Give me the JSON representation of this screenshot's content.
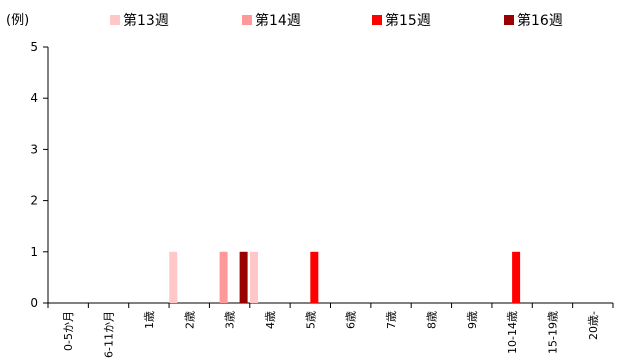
{
  "chart_data": {
    "type": "bar",
    "ylabel": "(例)",
    "ylim": [
      0,
      5
    ],
    "yticks": [
      0,
      1,
      2,
      3,
      4,
      5
    ],
    "categories": [
      "0-5か月",
      "6-11か月",
      "1歳",
      "2歳",
      "3歳",
      "4歳",
      "5歳",
      "6歳",
      "7歳",
      "8歳",
      "9歳",
      "10-14歳",
      "15-19歳",
      "20歳-"
    ],
    "series": [
      {
        "name": "第13週",
        "color": "#ffc7c7",
        "values": [
          0,
          0,
          0,
          1,
          0,
          1,
          0,
          0,
          0,
          0,
          0,
          0,
          0,
          0
        ]
      },
      {
        "name": "第14週",
        "color": "#ff9999",
        "values": [
          0,
          0,
          0,
          0,
          1,
          0,
          0,
          0,
          0,
          0,
          0,
          0,
          0,
          0
        ]
      },
      {
        "name": "第15週",
        "color": "#ff0000",
        "values": [
          0,
          0,
          0,
          0,
          0,
          0,
          1,
          0,
          0,
          0,
          0,
          1,
          0,
          0
        ]
      },
      {
        "name": "第16週",
        "color": "#990000",
        "values": [
          0,
          0,
          0,
          0,
          1,
          0,
          0,
          0,
          0,
          0,
          0,
          0,
          0,
          0
        ]
      }
    ],
    "grid": false,
    "legend_position": "top"
  }
}
